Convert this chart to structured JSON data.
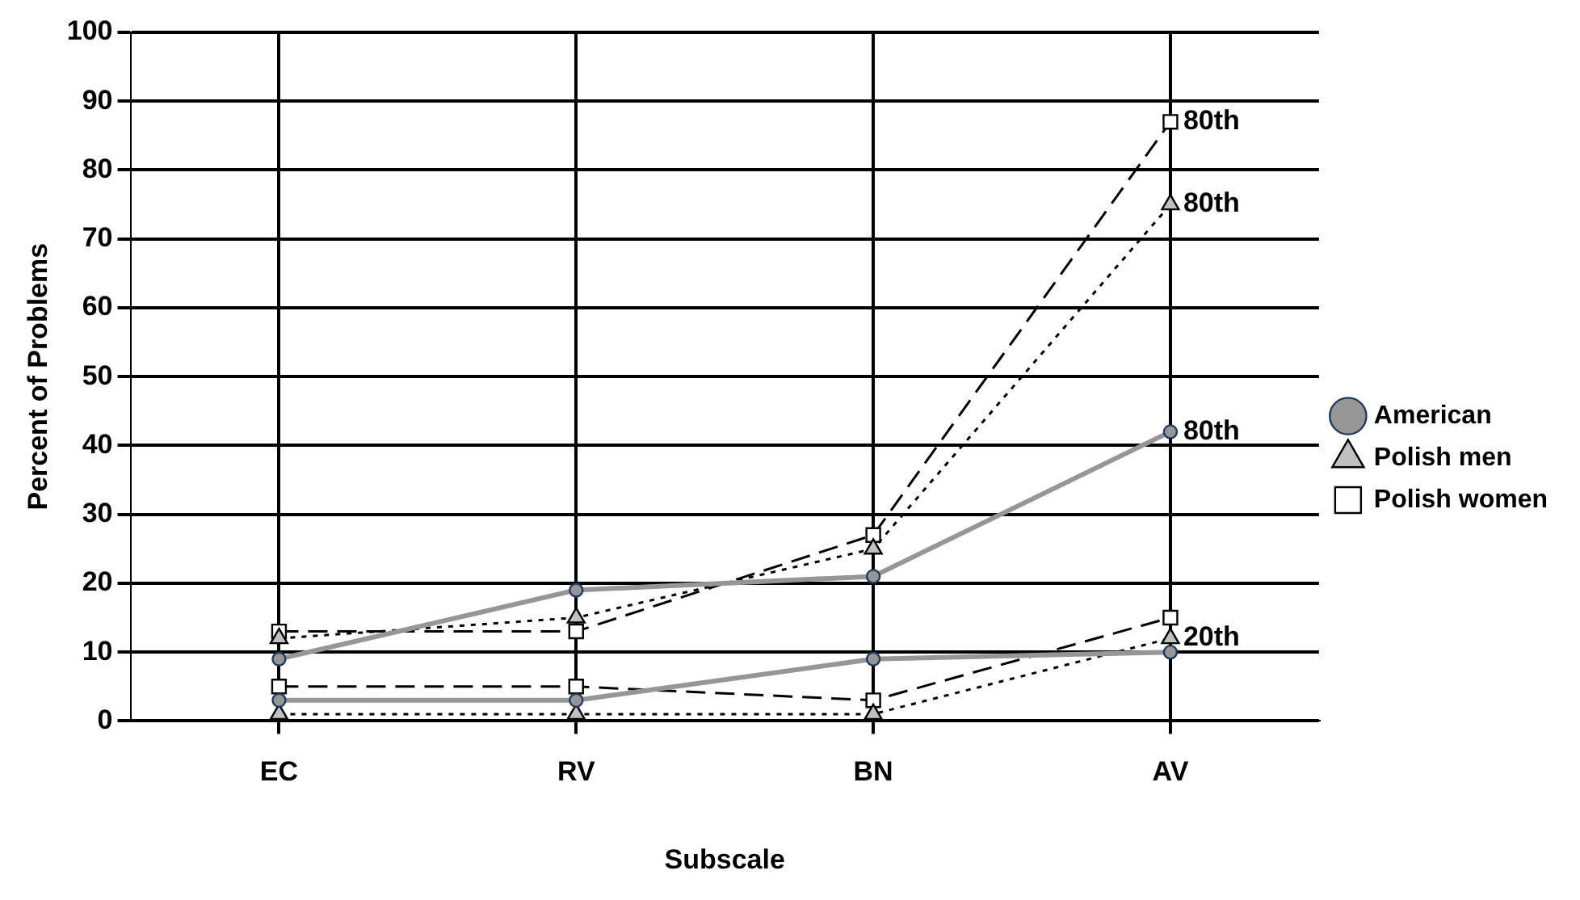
{
  "chart_data": {
    "type": "line",
    "xlabel": "Subscale",
    "ylabel": "Percent of Problems",
    "categories": [
      "EC",
      "RV",
      "BN",
      "AV"
    ],
    "ylim": [
      0,
      100
    ],
    "yticks": [
      0,
      10,
      20,
      30,
      40,
      50,
      60,
      70,
      80,
      90,
      100
    ],
    "grid": true,
    "legend": "right",
    "series": [
      {
        "name": "American",
        "color": "#969696",
        "marker": "circle",
        "line_style": "solid",
        "values": [
          9,
          19,
          21,
          42
        ]
      },
      {
        "name": "Polish men",
        "color": "#000000",
        "marker": "triangle",
        "line_style": "dotted",
        "values": [
          12,
          15,
          25,
          75
        ]
      },
      {
        "name": "Polish women",
        "color": "#000000",
        "marker": "square",
        "line_style": "dashed",
        "values": [
          13,
          13,
          27,
          87
        ]
      },
      {
        "color": "#969696",
        "marker": "circle",
        "line_style": "solid",
        "values": [
          3,
          3,
          9,
          10
        ]
      },
      {
        "color": "#000000",
        "marker": "triangle",
        "line_style": "dotted",
        "values": [
          1,
          1,
          1,
          12
        ]
      },
      {
        "color": "#000000",
        "marker": "square",
        "line_style": "dashed",
        "values": [
          5,
          5,
          3,
          15
        ]
      }
    ],
    "annotations": [
      {
        "text": "80th",
        "x": "AV",
        "y": 87
      },
      {
        "text": "80th",
        "x": "AV",
        "y": 75
      },
      {
        "text": "80th",
        "x": "AV",
        "y": 42
      },
      {
        "text": "20th",
        "x": "AV",
        "y": 12
      }
    ]
  }
}
